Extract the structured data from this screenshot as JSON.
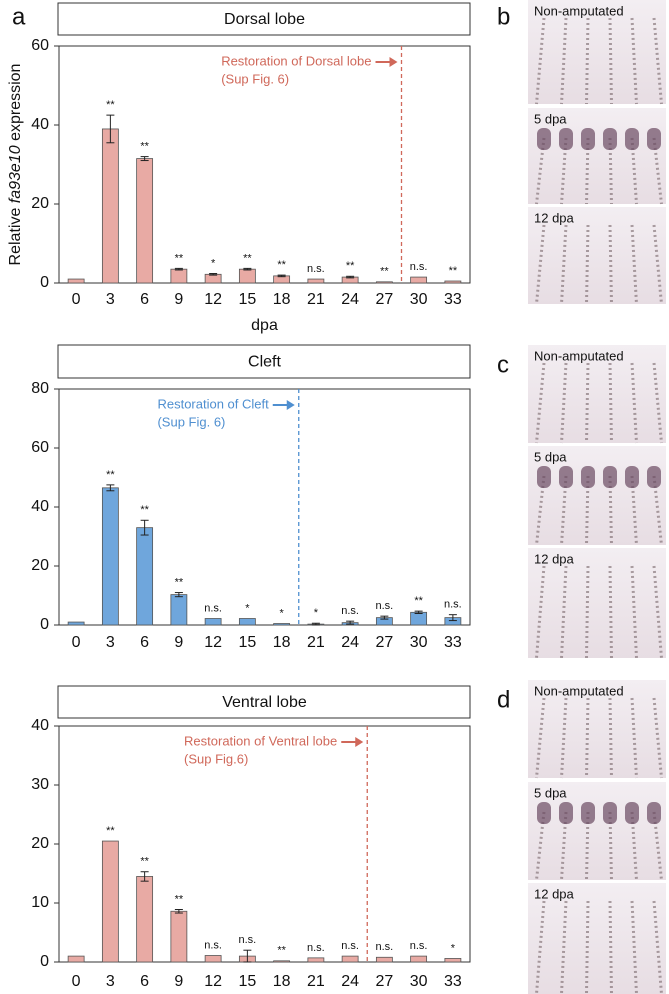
{
  "panel_label": "a",
  "chart_data": [
    {
      "type": "bar",
      "title": "Dorsal lobe",
      "ylabel": [
        "Relative ",
        "fa93e10",
        " expression"
      ],
      "xlabel": "dpa",
      "categories": [
        "0",
        "3",
        "6",
        "9",
        "12",
        "15",
        "18",
        "21",
        "24",
        "27",
        "30",
        "33"
      ],
      "values": [
        1,
        39,
        31.5,
        3.5,
        2.2,
        3.5,
        1.8,
        1,
        1.5,
        0.3,
        1.5,
        0.5
      ],
      "errors": [
        0,
        3.5,
        0.5,
        0.2,
        0.2,
        0.2,
        0.2,
        0,
        0.2,
        0,
        0,
        0
      ],
      "significance": [
        null,
        "**",
        "**",
        "**",
        "*",
        "**",
        "**",
        "n.s.",
        "**",
        "**",
        "n.s.",
        "**"
      ],
      "color": "#e8aaa4",
      "ylim": [
        0,
        60
      ],
      "yticks": [
        0,
        20,
        40,
        60
      ],
      "restoration": {
        "x": 28.5,
        "label": "Restoration of Dorsal lobe",
        "note": "(Sup Fig. 6)",
        "color": "#d0685a"
      }
    },
    {
      "type": "bar",
      "title": "Cleft",
      "categories": [
        "0",
        "3",
        "6",
        "9",
        "12",
        "15",
        "18",
        "21",
        "24",
        "27",
        "30",
        "33"
      ],
      "values": [
        1,
        46.5,
        33,
        10.3,
        2.2,
        2.2,
        0.5,
        0.3,
        0.8,
        2.5,
        4.3,
        2.5
      ],
      "errors": [
        0,
        1,
        2.5,
        0.7,
        0,
        0,
        0,
        0.3,
        0.5,
        0.5,
        0.4,
        1
      ],
      "significance": [
        null,
        "**",
        "**",
        "**",
        "n.s.",
        "*",
        "*",
        "*",
        "n.s.",
        "n.s.",
        "**",
        "n.s."
      ],
      "color": "#6fa6dc",
      "ylim": [
        0,
        80
      ],
      "yticks": [
        0,
        20,
        40,
        60,
        80
      ],
      "restoration": {
        "x": 19.5,
        "label": "Restoration of Cleft",
        "note": "(Sup Fig. 6)",
        "color": "#4f8fd0"
      }
    },
    {
      "type": "bar",
      "title": "Ventral lobe",
      "categories": [
        "0",
        "3",
        "6",
        "9",
        "12",
        "15",
        "18",
        "21",
        "24",
        "27",
        "30",
        "33"
      ],
      "values": [
        1,
        20.5,
        14.5,
        8.6,
        1.1,
        1,
        0.2,
        0.7,
        1,
        0.8,
        1,
        0.6
      ],
      "errors": [
        0,
        0,
        0.8,
        0.3,
        0,
        1,
        0,
        0,
        0,
        0,
        0,
        0
      ],
      "significance": [
        null,
        "**",
        "**",
        "**",
        "n.s.",
        "n.s.",
        "**",
        "n.s.",
        "n.s.",
        "n.s.",
        "n.s.",
        "*"
      ],
      "color": "#e8aaa4",
      "ylim": [
        0,
        40
      ],
      "yticks": [
        0,
        10,
        20,
        30,
        40
      ],
      "restoration": {
        "x": 25.5,
        "label": "Restoration of Ventral lobe",
        "note": "(Sup Fig.6)",
        "color": "#d0685a"
      }
    }
  ],
  "photo_panels": [
    {
      "label": "b",
      "captions": [
        "Non-amputated",
        "5 dpa",
        "12 dpa"
      ]
    },
    {
      "label": "c",
      "captions": [
        "Non-amputated",
        "5 dpa",
        "12 dpa"
      ]
    },
    {
      "label": "d",
      "captions": [
        "Non-amputated",
        "5 dpa",
        "12 dpa"
      ]
    }
  ]
}
